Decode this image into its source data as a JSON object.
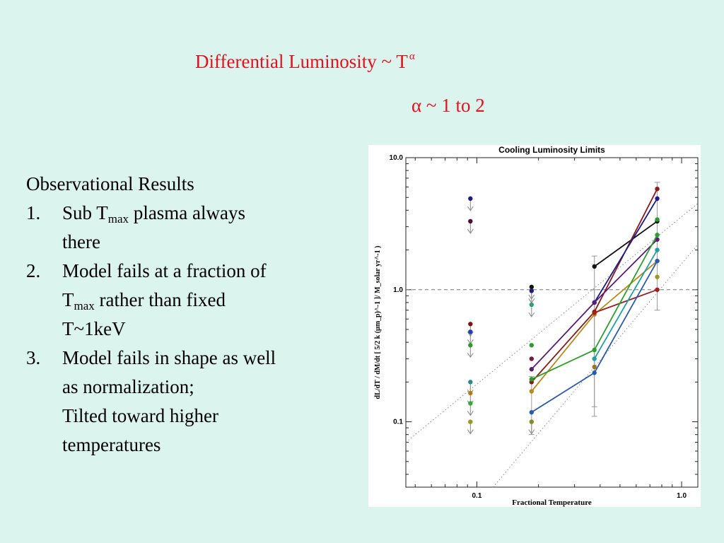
{
  "slide": {
    "title_text": "Differential Luminosity ~  T",
    "title_exponent": "α",
    "subtitle": "α ~ 1 to 2"
  },
  "observations": {
    "heading": "Observational Results",
    "items": [
      {
        "num": "1.",
        "lines": [
          {
            "parts": [
              "Sub T",
              "max",
              " plasma always"
            ]
          },
          {
            "parts": [
              "there"
            ]
          }
        ]
      },
      {
        "num": "2.",
        "lines": [
          {
            "parts": [
              "Model fails at a fraction of"
            ]
          },
          {
            "parts": [
              "T",
              "max",
              " rather than fixed"
            ]
          },
          {
            "parts": [
              "T~1keV"
            ]
          }
        ]
      },
      {
        "num": "3.",
        "lines": [
          {
            "parts": [
              "Model fails in shape as well"
            ]
          },
          {
            "parts": [
              "as normalization;"
            ]
          },
          {
            "parts": [
              "Tilted toward higher"
            ]
          },
          {
            "parts": [
              "temperatures"
            ]
          }
        ]
      }
    ]
  },
  "chart_data": {
    "type": "scatter",
    "title": "Cooling Luminosity Limits",
    "xlabel": "Fractional Temperature",
    "ylabel": "dL/dT / dM/dt [ 5/2 k (μm_p)^-1 ]/ M_solar yr^-1 )",
    "x_scale": "log",
    "y_scale": "log",
    "xlim": [
      0.045,
      1.2
    ],
    "ylim": [
      0.032,
      10.0
    ],
    "x_ticks": [
      {
        "value": 0.1,
        "label": "0.1"
      },
      {
        "value": 1.0,
        "label": "1.0"
      }
    ],
    "y_ticks": [
      {
        "value": 0.1,
        "label": "0.1"
      },
      {
        "value": 1.0,
        "label": "1.0"
      },
      {
        "value": 10.0,
        "label": "10.0"
      }
    ],
    "reference_line_y": 1.0,
    "dotted_lines": [
      {
        "from": [
          0.045,
          0.07
        ],
        "to": [
          1.2,
          4.5
        ]
      },
      {
        "from": [
          0.12,
          0.032
        ],
        "to": [
          1.2,
          2.2
        ]
      }
    ],
    "upper_limits": [
      {
        "x": 0.093,
        "y": 4.9,
        "color": "#1c1c80"
      },
      {
        "x": 0.093,
        "y": 3.3,
        "color": "#4a0e2c"
      },
      {
        "x": 0.093,
        "y": 0.55,
        "color": "#7a1515"
      },
      {
        "x": 0.093,
        "y": 0.48,
        "color": "#1f3fb0"
      },
      {
        "x": 0.093,
        "y": 0.38,
        "color": "#2a9a2a"
      },
      {
        "x": 0.093,
        "y": 0.2,
        "color": "#2a8a8a"
      },
      {
        "x": 0.093,
        "y": 0.165,
        "color": "#b07a18"
      },
      {
        "x": 0.093,
        "y": 0.138,
        "color": "#3aa63a"
      },
      {
        "x": 0.093,
        "y": 0.1,
        "color": "#9a9a22"
      },
      {
        "x": 0.185,
        "y": 1.05,
        "color": "#111111"
      },
      {
        "x": 0.185,
        "y": 0.98,
        "color": "#1c1c80"
      },
      {
        "x": 0.185,
        "y": 0.77,
        "color": "#2aa07a"
      },
      {
        "x": 0.185,
        "y": 0.1,
        "color": "#8a8a22"
      }
    ],
    "series": [
      {
        "color": "#111111",
        "points": [
          [
            0.375,
            1.5
          ],
          [
            0.76,
            3.3
          ]
        ]
      },
      {
        "color": "#8b1a1a",
        "points": [
          [
            0.185,
            0.2
          ],
          [
            0.375,
            0.68
          ],
          [
            0.76,
            5.8
          ]
        ]
      },
      {
        "color": "#1a1a8c",
        "points": [
          [
            0.375,
            0.8
          ],
          [
            0.76,
            4.9
          ]
        ]
      },
      {
        "color": "#5a1a7a",
        "points": [
          [
            0.185,
            0.25
          ],
          [
            0.375,
            0.8
          ],
          [
            0.76,
            2.4
          ]
        ]
      },
      {
        "color": "#b88a1a",
        "points": [
          [
            0.185,
            0.17
          ],
          [
            0.375,
            0.65
          ],
          [
            0.76,
            1.65
          ]
        ]
      },
      {
        "color": "#a02020",
        "points": [
          [
            0.375,
            0.67
          ],
          [
            0.76,
            1.0
          ]
        ]
      },
      {
        "color": "#2aa02a",
        "points": [
          [
            0.185,
            0.21
          ],
          [
            0.375,
            0.35
          ],
          [
            0.76,
            2.6
          ]
        ]
      },
      {
        "color": "#20a0a0",
        "points": [
          [
            0.375,
            0.3
          ],
          [
            0.76,
            2.0
          ]
        ]
      },
      {
        "color": "#2a5ab0",
        "points": [
          [
            0.185,
            0.118
          ],
          [
            0.375,
            0.235
          ],
          [
            0.76,
            1.65
          ]
        ]
      }
    ],
    "extra_points": [
      {
        "x": 0.185,
        "y": 0.3,
        "color": "#7a1a3a"
      },
      {
        "x": 0.185,
        "y": 0.38,
        "color": "#2a9a2a"
      },
      {
        "x": 0.375,
        "y": 0.26,
        "color": "#9a7a18"
      },
      {
        "x": 0.76,
        "y": 3.4,
        "color": "#2a9a2a"
      },
      {
        "x": 0.76,
        "y": 1.25,
        "color": "#9a9a22"
      }
    ],
    "error_bars": [
      {
        "x": 0.375,
        "low": 0.11,
        "high": 1.8
      },
      {
        "x": 0.375,
        "low": 0.13,
        "high": 1.0
      },
      {
        "x": 0.76,
        "low": 0.7,
        "high": 6.5
      },
      {
        "x": 0.185,
        "low": 0.08,
        "high": 0.22
      }
    ]
  }
}
